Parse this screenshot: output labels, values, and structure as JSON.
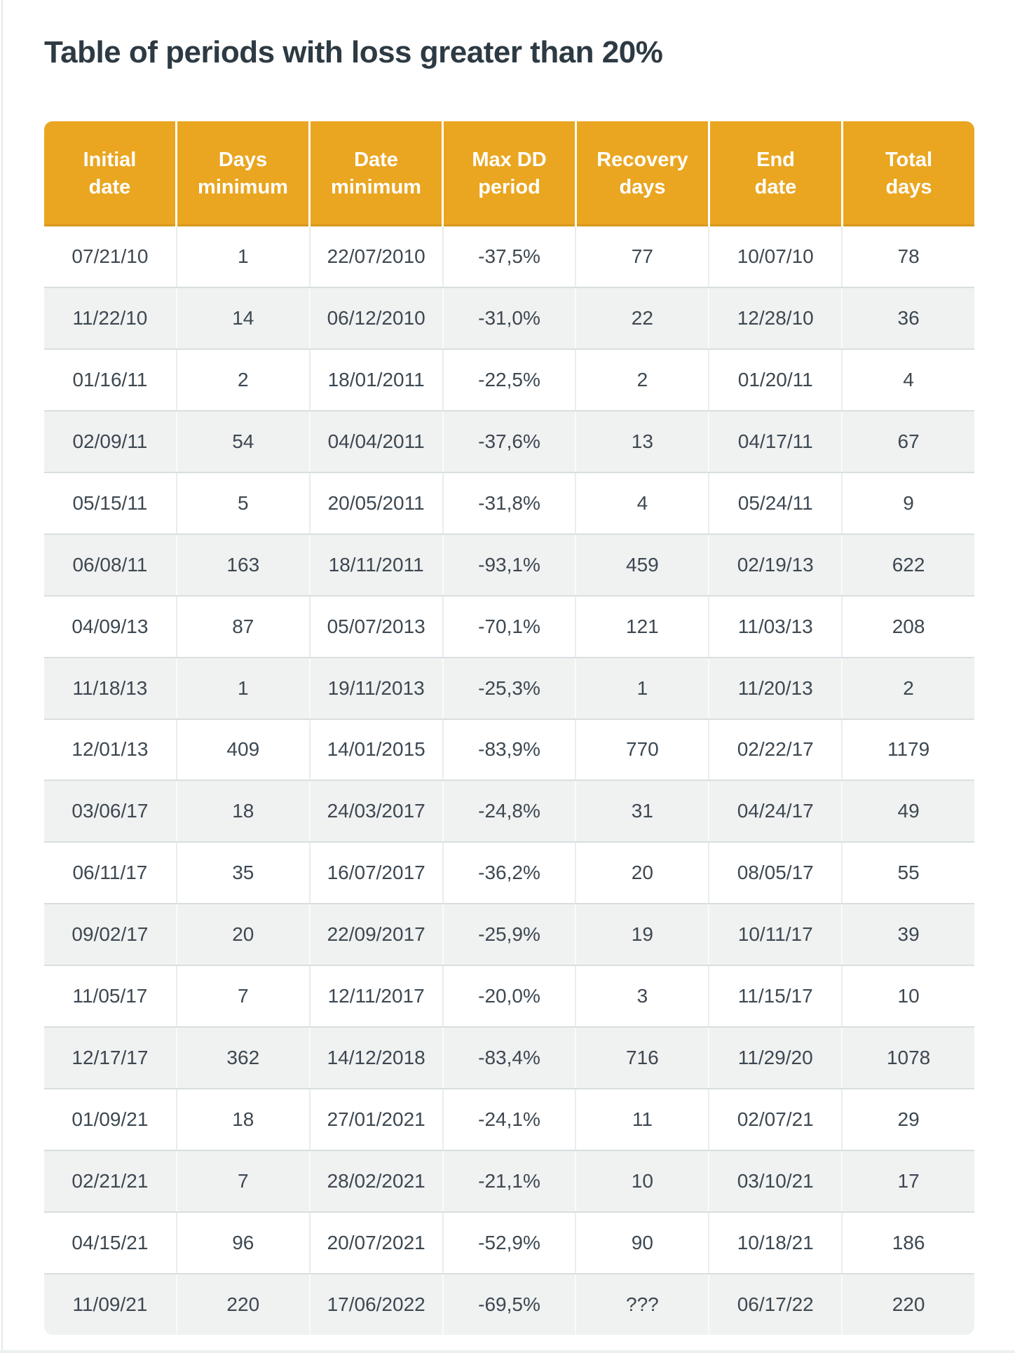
{
  "page": {
    "title": "Table of periods with loss greater than 20%"
  },
  "colors": {
    "header_bg": "#EAA621",
    "header_text": "#FFFFFF",
    "row_bg": "#FFFFFF",
    "row_alt_bg": "#F0F1F1",
    "row_separator": "#D9DEE1",
    "title_text": "#2D3A43",
    "cell_text": "#3D4851"
  },
  "chart_data": {
    "type": "table",
    "title": "Table of periods with loss greater than 20%",
    "columns": [
      {
        "label": "Initial date",
        "line1": "Initial",
        "line2": "date"
      },
      {
        "label": "Days minimum",
        "line1": "Days",
        "line2": "minimum"
      },
      {
        "label": "Date minimum",
        "line1": "Date",
        "line2": "minimum"
      },
      {
        "label": "Max DD period",
        "line1": "Max DD",
        "line2": "period"
      },
      {
        "label": "Recovery days",
        "line1": "Recovery",
        "line2": "days"
      },
      {
        "label": "End date",
        "line1": "End",
        "line2": "date"
      },
      {
        "label": "Total days",
        "line1": "Total",
        "line2": "days"
      }
    ],
    "rows": [
      [
        "07/21/10",
        "1",
        "22/07/2010",
        "-37,5%",
        "77",
        "10/07/10",
        "78"
      ],
      [
        "11/22/10",
        "14",
        "06/12/2010",
        "-31,0%",
        "22",
        "12/28/10",
        "36"
      ],
      [
        "01/16/11",
        "2",
        "18/01/2011",
        "-22,5%",
        "2",
        "01/20/11",
        "4"
      ],
      [
        "02/09/11",
        "54",
        "04/04/2011",
        "-37,6%",
        "13",
        "04/17/11",
        "67"
      ],
      [
        "05/15/11",
        "5",
        "20/05/2011",
        "-31,8%",
        "4",
        "05/24/11",
        "9"
      ],
      [
        "06/08/11",
        "163",
        "18/11/2011",
        "-93,1%",
        "459",
        "02/19/13",
        "622"
      ],
      [
        "04/09/13",
        "87",
        "05/07/2013",
        "-70,1%",
        "121",
        "11/03/13",
        "208"
      ],
      [
        "11/18/13",
        "1",
        "19/11/2013",
        "-25,3%",
        "1",
        "11/20/13",
        "2"
      ],
      [
        "12/01/13",
        "409",
        "14/01/2015",
        "-83,9%",
        "770",
        "02/22/17",
        "1179"
      ],
      [
        "03/06/17",
        "18",
        "24/03/2017",
        "-24,8%",
        "31",
        "04/24/17",
        "49"
      ],
      [
        "06/11/17",
        "35",
        "16/07/2017",
        "-36,2%",
        "20",
        "08/05/17",
        "55"
      ],
      [
        "09/02/17",
        "20",
        "22/09/2017",
        "-25,9%",
        "19",
        "10/11/17",
        "39"
      ],
      [
        "11/05/17",
        "7",
        "12/11/2017",
        "-20,0%",
        "3",
        "11/15/17",
        "10"
      ],
      [
        "12/17/17",
        "362",
        "14/12/2018",
        "-83,4%",
        "716",
        "11/29/20",
        "1078"
      ],
      [
        "01/09/21",
        "18",
        "27/01/2021",
        "-24,1%",
        "11",
        "02/07/21",
        "29"
      ],
      [
        "02/21/21",
        "7",
        "28/02/2021",
        "-21,1%",
        "10",
        "03/10/21",
        "17"
      ],
      [
        "04/15/21",
        "96",
        "20/07/2021",
        "-52,9%",
        "90",
        "10/18/21",
        "186"
      ],
      [
        "11/09/21",
        "220",
        "17/06/2022",
        "-69,5%",
        "???",
        "06/17/22",
        "220"
      ]
    ]
  }
}
